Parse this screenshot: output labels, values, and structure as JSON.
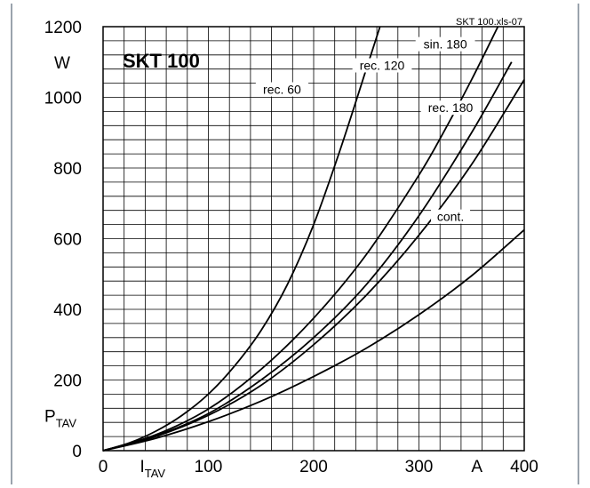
{
  "chart_data": {
    "type": "line",
    "title": "SKT 100",
    "file_tag": "SKT 100.xls-07",
    "xlabel": "I",
    "xlabel_sub": "TAV",
    "xunit": "A",
    "ylabel": "P",
    "ylabel_sub": "TAV",
    "yunit": "W",
    "xlim": [
      0,
      400
    ],
    "ylim": [
      0,
      1200
    ],
    "x_ticks": [
      "0",
      "100",
      "200",
      "300",
      "400"
    ],
    "y_ticks": [
      "0",
      "200",
      "400",
      "600",
      "800",
      "1000",
      "1200"
    ],
    "grid": true,
    "series": [
      {
        "name": "rec. 60",
        "x": [
          0,
          25,
          50,
          75,
          100,
          125,
          150,
          175,
          200,
          225,
          250,
          263
        ],
        "y": [
          0,
          22,
          55,
          100,
          160,
          240,
          340,
          470,
          640,
          850,
          1080,
          1200
        ]
      },
      {
        "name": "rec. 120",
        "x": [
          0,
          50,
          100,
          150,
          200,
          250,
          300,
          325,
          350,
          375
        ],
        "y": [
          0,
          45,
          118,
          230,
          375,
          555,
          780,
          910,
          1050,
          1200
        ]
      },
      {
        "name": "sin. 180",
        "x": [
          0,
          50,
          100,
          150,
          200,
          250,
          300,
          350,
          388
        ],
        "y": [
          0,
          42,
          105,
          200,
          320,
          470,
          665,
          900,
          1100
        ]
      },
      {
        "name": "rec. 180",
        "x": [
          0,
          50,
          100,
          150,
          200,
          250,
          300,
          350,
          400
        ],
        "y": [
          0,
          40,
          100,
          185,
          300,
          440,
          610,
          810,
          1050
        ]
      },
      {
        "name": "cont.",
        "x": [
          0,
          50,
          100,
          150,
          200,
          250,
          300,
          350,
          400
        ],
        "y": [
          0,
          35,
          82,
          140,
          210,
          290,
          385,
          495,
          625
        ]
      }
    ],
    "series_label_positions": {
      "rec. 60": [
        170,
        1015
      ],
      "rec. 120": [
        265,
        1083
      ],
      "sin. 180": [
        325,
        1143
      ],
      "rec. 180": [
        330,
        963
      ],
      "cont.": [
        330,
        655
      ]
    }
  }
}
